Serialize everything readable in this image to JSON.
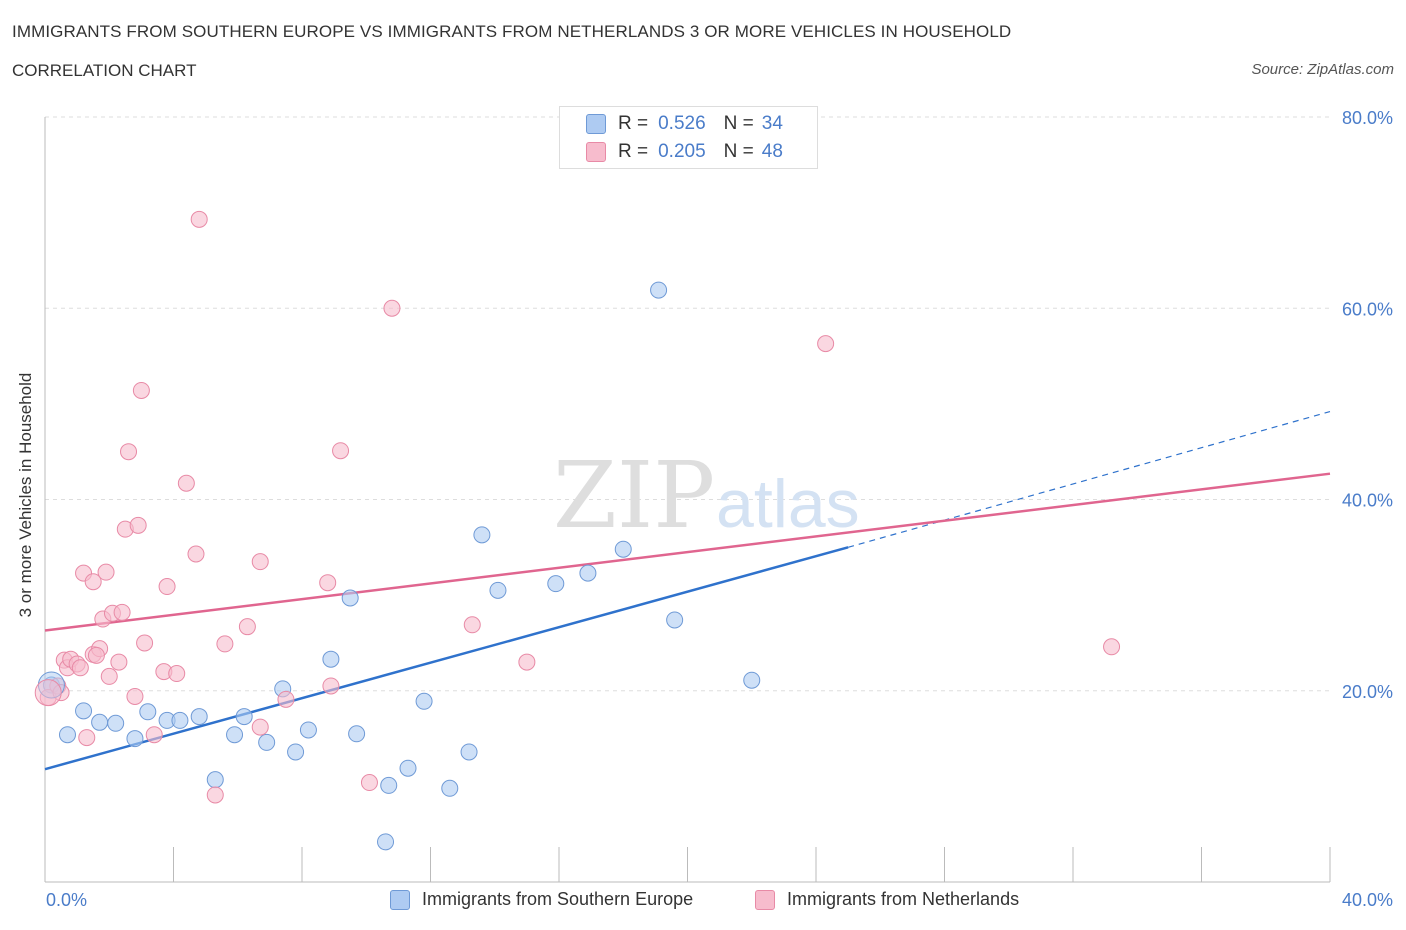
{
  "header": {
    "title": "IMMIGRANTS FROM SOUTHERN EUROPE VS IMMIGRANTS FROM NETHERLANDS 3 OR MORE VEHICLES IN HOUSEHOLD",
    "subtitle": "CORRELATION CHART",
    "source": "Source: ZipAtlas.com"
  },
  "watermark": {
    "zip": "ZIP",
    "atlas": "atlas"
  },
  "legend": {
    "r_label": "R =",
    "n_label": "N =",
    "entries": [
      {
        "r": "0.526",
        "n": "34"
      },
      {
        "r": "0.205",
        "n": "48"
      }
    ]
  },
  "colors": {
    "blue_fill": "#aecbf2",
    "blue_stroke": "#6f9ad6",
    "blue_line": "#2f72cc",
    "pink_fill": "#f7bccd",
    "pink_stroke": "#e88aa6",
    "pink_line": "#e0658f",
    "tick_label": "#4a7cc9",
    "grid": "#dddddd"
  },
  "chart_data": {
    "type": "scatter",
    "xlabel": "",
    "ylabel": "3 or more Vehicles in Household",
    "xlim": [
      0,
      40
    ],
    "ylim": [
      0,
      80
    ],
    "x_tick_labels": [
      "0.0%",
      "40.0%"
    ],
    "y_tick_values": [
      20,
      40,
      60,
      80
    ],
    "y_tick_labels": [
      "20.0%",
      "40.0%",
      "60.0%",
      "80.0%"
    ],
    "grid": true,
    "legend_position": "top-center",
    "series": [
      {
        "name": "Immigrants from Southern Europe",
        "color": "blue",
        "points": [
          [
            0.2,
            20.6
          ],
          [
            0.7,
            15.4
          ],
          [
            1.2,
            17.9
          ],
          [
            1.7,
            16.7
          ],
          [
            2.2,
            16.6
          ],
          [
            2.8,
            15.0
          ],
          [
            3.2,
            17.8
          ],
          [
            3.8,
            16.9
          ],
          [
            4.2,
            16.9
          ],
          [
            4.8,
            17.3
          ],
          [
            5.3,
            10.7
          ],
          [
            5.9,
            15.4
          ],
          [
            6.2,
            17.3
          ],
          [
            6.9,
            14.6
          ],
          [
            7.4,
            20.2
          ],
          [
            7.8,
            13.6
          ],
          [
            8.2,
            15.9
          ],
          [
            8.9,
            23.3
          ],
          [
            9.5,
            29.7
          ],
          [
            9.7,
            15.5
          ],
          [
            10.7,
            10.1
          ],
          [
            11.3,
            11.9
          ],
          [
            11.8,
            18.9
          ],
          [
            12.6,
            9.8
          ],
          [
            13.2,
            13.6
          ],
          [
            13.6,
            36.3
          ],
          [
            14.1,
            30.5
          ],
          [
            15.9,
            31.2
          ],
          [
            16.9,
            32.3
          ],
          [
            18.0,
            34.8
          ],
          [
            19.1,
            61.9
          ],
          [
            19.6,
            27.4
          ],
          [
            22.0,
            21.1
          ],
          [
            10.6,
            4.2
          ]
        ],
        "trend": {
          "x": [
            0,
            25,
            40
          ],
          "y": [
            11.8,
            35.0,
            49.2
          ],
          "solid_until": 25
        }
      },
      {
        "name": "Immigrants from Netherlands",
        "color": "pink",
        "points": [
          [
            0.1,
            19.3
          ],
          [
            0.4,
            20.5
          ],
          [
            0.5,
            19.8
          ],
          [
            0.6,
            23.2
          ],
          [
            0.7,
            22.4
          ],
          [
            0.8,
            23.3
          ],
          [
            1.0,
            22.8
          ],
          [
            1.1,
            22.4
          ],
          [
            1.2,
            32.3
          ],
          [
            1.3,
            15.1
          ],
          [
            1.5,
            23.8
          ],
          [
            1.5,
            31.4
          ],
          [
            1.7,
            24.4
          ],
          [
            1.8,
            27.5
          ],
          [
            1.9,
            32.4
          ],
          [
            2.0,
            21.5
          ],
          [
            2.1,
            28.1
          ],
          [
            2.3,
            23.0
          ],
          [
            2.4,
            28.2
          ],
          [
            2.5,
            36.9
          ],
          [
            2.6,
            45.0
          ],
          [
            2.8,
            19.4
          ],
          [
            2.9,
            37.3
          ],
          [
            3.0,
            51.4
          ],
          [
            3.1,
            25.0
          ],
          [
            3.4,
            15.4
          ],
          [
            3.7,
            22.0
          ],
          [
            3.8,
            30.9
          ],
          [
            4.1,
            21.8
          ],
          [
            4.4,
            41.7
          ],
          [
            4.7,
            34.3
          ],
          [
            4.8,
            69.3
          ],
          [
            5.3,
            9.1
          ],
          [
            5.6,
            24.9
          ],
          [
            6.3,
            26.7
          ],
          [
            6.7,
            33.5
          ],
          [
            6.7,
            16.2
          ],
          [
            7.5,
            19.1
          ],
          [
            8.8,
            31.3
          ],
          [
            8.9,
            20.5
          ],
          [
            9.2,
            45.1
          ],
          [
            10.1,
            10.4
          ],
          [
            10.8,
            60.0
          ],
          [
            13.3,
            26.9
          ],
          [
            15.0,
            23.0
          ],
          [
            24.3,
            56.3
          ],
          [
            33.2,
            24.6
          ],
          [
            1.6,
            23.7
          ]
        ],
        "trend": {
          "x": [
            0,
            40
          ],
          "y": [
            26.3,
            42.7
          ],
          "solid_until": 40
        }
      }
    ]
  }
}
